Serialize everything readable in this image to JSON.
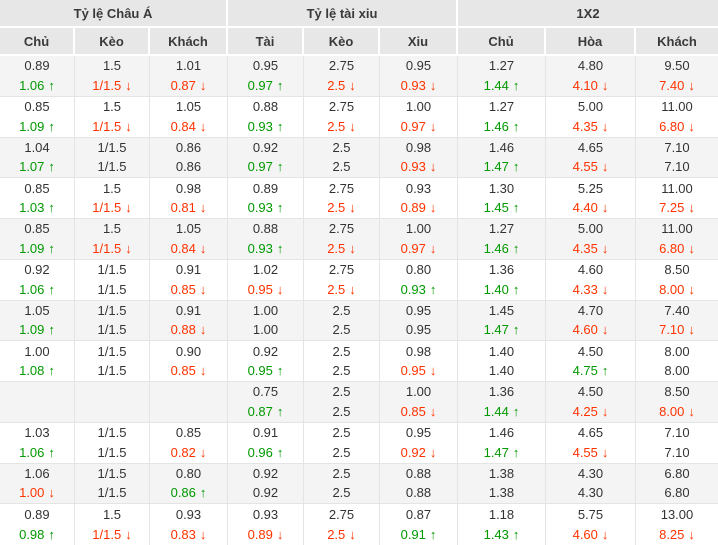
{
  "table": {
    "groups": [
      {
        "label": "Tỷ lệ Châu Á",
        "columns": [
          "Chủ",
          "Kèo",
          "Khách"
        ]
      },
      {
        "label": "Tỷ lệ tài xiu",
        "columns": [
          "Tài",
          "Kèo",
          "Xiu"
        ]
      },
      {
        "label": "1X2",
        "columns": [
          "Chủ",
          "Hòa",
          "Khách"
        ]
      }
    ],
    "column_keys": [
      "asian-home",
      "asian-handicap",
      "asian-away",
      "ou-over",
      "ou-line",
      "ou-under",
      "1x2-home",
      "1x2-draw",
      "1x2-away"
    ],
    "rows": [
      {
        "cells": [
          {
            "top": "0.89",
            "bottom": "1.06",
            "trend": "up"
          },
          {
            "top": "1.5",
            "bottom": "1/1.5",
            "trend": "down"
          },
          {
            "top": "1.01",
            "bottom": "0.87",
            "trend": "down"
          },
          {
            "top": "0.95",
            "bottom": "0.97",
            "trend": "up"
          },
          {
            "top": "2.75",
            "bottom": "2.5",
            "trend": "down"
          },
          {
            "top": "0.95",
            "bottom": "0.93",
            "trend": "down"
          },
          {
            "top": "1.27",
            "bottom": "1.44",
            "trend": "up"
          },
          {
            "top": "4.80",
            "bottom": "4.10",
            "trend": "down"
          },
          {
            "top": "9.50",
            "bottom": "7.40",
            "trend": "down"
          }
        ]
      },
      {
        "cells": [
          {
            "top": "0.85",
            "bottom": "1.09",
            "trend": "up"
          },
          {
            "top": "1.5",
            "bottom": "1/1.5",
            "trend": "down"
          },
          {
            "top": "1.05",
            "bottom": "0.84",
            "trend": "down"
          },
          {
            "top": "0.88",
            "bottom": "0.93",
            "trend": "up"
          },
          {
            "top": "2.75",
            "bottom": "2.5",
            "trend": "down"
          },
          {
            "top": "1.00",
            "bottom": "0.97",
            "trend": "down"
          },
          {
            "top": "1.27",
            "bottom": "1.46",
            "trend": "up"
          },
          {
            "top": "5.00",
            "bottom": "4.35",
            "trend": "down"
          },
          {
            "top": "11.00",
            "bottom": "6.80",
            "trend": "down"
          }
        ]
      },
      {
        "cells": [
          {
            "top": "1.04",
            "bottom": "1.07",
            "trend": "up"
          },
          {
            "top": "1/1.5",
            "bottom": "1/1.5",
            "trend": "none"
          },
          {
            "top": "0.86",
            "bottom": "0.86",
            "trend": "none"
          },
          {
            "top": "0.92",
            "bottom": "0.97",
            "trend": "up"
          },
          {
            "top": "2.5",
            "bottom": "2.5",
            "trend": "none"
          },
          {
            "top": "0.98",
            "bottom": "0.93",
            "trend": "down"
          },
          {
            "top": "1.46",
            "bottom": "1.47",
            "trend": "up"
          },
          {
            "top": "4.65",
            "bottom": "4.55",
            "trend": "down"
          },
          {
            "top": "7.10",
            "bottom": "7.10",
            "trend": "none"
          }
        ]
      },
      {
        "cells": [
          {
            "top": "0.85",
            "bottom": "1.03",
            "trend": "up"
          },
          {
            "top": "1.5",
            "bottom": "1/1.5",
            "trend": "down"
          },
          {
            "top": "0.98",
            "bottom": "0.81",
            "trend": "down"
          },
          {
            "top": "0.89",
            "bottom": "0.93",
            "trend": "up"
          },
          {
            "top": "2.75",
            "bottom": "2.5",
            "trend": "down"
          },
          {
            "top": "0.93",
            "bottom": "0.89",
            "trend": "down"
          },
          {
            "top": "1.30",
            "bottom": "1.45",
            "trend": "up"
          },
          {
            "top": "5.25",
            "bottom": "4.40",
            "trend": "down"
          },
          {
            "top": "11.00",
            "bottom": "7.25",
            "trend": "down"
          }
        ]
      },
      {
        "cells": [
          {
            "top": "0.85",
            "bottom": "1.09",
            "trend": "up"
          },
          {
            "top": "1.5",
            "bottom": "1/1.5",
            "trend": "down"
          },
          {
            "top": "1.05",
            "bottom": "0.84",
            "trend": "down"
          },
          {
            "top": "0.88",
            "bottom": "0.93",
            "trend": "up"
          },
          {
            "top": "2.75",
            "bottom": "2.5",
            "trend": "down"
          },
          {
            "top": "1.00",
            "bottom": "0.97",
            "trend": "down"
          },
          {
            "top": "1.27",
            "bottom": "1.46",
            "trend": "up"
          },
          {
            "top": "5.00",
            "bottom": "4.35",
            "trend": "down"
          },
          {
            "top": "11.00",
            "bottom": "6.80",
            "trend": "down"
          }
        ]
      },
      {
        "cells": [
          {
            "top": "0.92",
            "bottom": "1.06",
            "trend": "up"
          },
          {
            "top": "1/1.5",
            "bottom": "1/1.5",
            "trend": "none"
          },
          {
            "top": "0.91",
            "bottom": "0.85",
            "trend": "down"
          },
          {
            "top": "1.02",
            "bottom": "0.95",
            "trend": "down"
          },
          {
            "top": "2.75",
            "bottom": "2.5",
            "trend": "down"
          },
          {
            "top": "0.80",
            "bottom": "0.93",
            "trend": "up"
          },
          {
            "top": "1.36",
            "bottom": "1.40",
            "trend": "up"
          },
          {
            "top": "4.60",
            "bottom": "4.33",
            "trend": "down"
          },
          {
            "top": "8.50",
            "bottom": "8.00",
            "trend": "down"
          }
        ]
      },
      {
        "cells": [
          {
            "top": "1.05",
            "bottom": "1.09",
            "trend": "up"
          },
          {
            "top": "1/1.5",
            "bottom": "1/1.5",
            "trend": "none"
          },
          {
            "top": "0.91",
            "bottom": "0.88",
            "trend": "down"
          },
          {
            "top": "1.00",
            "bottom": "1.00",
            "trend": "none"
          },
          {
            "top": "2.5",
            "bottom": "2.5",
            "trend": "none"
          },
          {
            "top": "0.95",
            "bottom": "0.95",
            "trend": "none"
          },
          {
            "top": "1.45",
            "bottom": "1.47",
            "trend": "up"
          },
          {
            "top": "4.70",
            "bottom": "4.60",
            "trend": "down"
          },
          {
            "top": "7.40",
            "bottom": "7.10",
            "trend": "down"
          }
        ]
      },
      {
        "cells": [
          {
            "top": "1.00",
            "bottom": "1.08",
            "trend": "up"
          },
          {
            "top": "1/1.5",
            "bottom": "1/1.5",
            "trend": "none"
          },
          {
            "top": "0.90",
            "bottom": "0.85",
            "trend": "down"
          },
          {
            "top": "0.92",
            "bottom": "0.95",
            "trend": "up"
          },
          {
            "top": "2.5",
            "bottom": "2.5",
            "trend": "none"
          },
          {
            "top": "0.98",
            "bottom": "0.95",
            "trend": "down"
          },
          {
            "top": "1.40",
            "bottom": "1.40",
            "trend": "none"
          },
          {
            "top": "4.50",
            "bottom": "4.75",
            "trend": "up"
          },
          {
            "top": "8.00",
            "bottom": "8.00",
            "trend": "none"
          }
        ]
      },
      {
        "cells": [
          {
            "top": "",
            "bottom": "",
            "trend": "none"
          },
          {
            "top": "",
            "bottom": "",
            "trend": "none"
          },
          {
            "top": "",
            "bottom": "",
            "trend": "none"
          },
          {
            "top": "0.75",
            "bottom": "0.87",
            "trend": "up"
          },
          {
            "top": "2.5",
            "bottom": "2.5",
            "trend": "none"
          },
          {
            "top": "1.00",
            "bottom": "0.85",
            "trend": "down"
          },
          {
            "top": "1.36",
            "bottom": "1.44",
            "trend": "up"
          },
          {
            "top": "4.50",
            "bottom": "4.25",
            "trend": "down"
          },
          {
            "top": "8.50",
            "bottom": "8.00",
            "trend": "down"
          }
        ]
      },
      {
        "cells": [
          {
            "top": "1.03",
            "bottom": "1.06",
            "trend": "up"
          },
          {
            "top": "1/1.5",
            "bottom": "1/1.5",
            "trend": "none"
          },
          {
            "top": "0.85",
            "bottom": "0.82",
            "trend": "down"
          },
          {
            "top": "0.91",
            "bottom": "0.96",
            "trend": "up"
          },
          {
            "top": "2.5",
            "bottom": "2.5",
            "trend": "none"
          },
          {
            "top": "0.95",
            "bottom": "0.92",
            "trend": "down"
          },
          {
            "top": "1.46",
            "bottom": "1.47",
            "trend": "up"
          },
          {
            "top": "4.65",
            "bottom": "4.55",
            "trend": "down"
          },
          {
            "top": "7.10",
            "bottom": "7.10",
            "trend": "none"
          }
        ]
      },
      {
        "cells": [
          {
            "top": "1.06",
            "bottom": "1.00",
            "trend": "down"
          },
          {
            "top": "1/1.5",
            "bottom": "1/1.5",
            "trend": "none"
          },
          {
            "top": "0.80",
            "bottom": "0.86",
            "trend": "up"
          },
          {
            "top": "0.92",
            "bottom": "0.92",
            "trend": "none"
          },
          {
            "top": "2.5",
            "bottom": "2.5",
            "trend": "none"
          },
          {
            "top": "0.88",
            "bottom": "0.88",
            "trend": "none"
          },
          {
            "top": "1.38",
            "bottom": "1.38",
            "trend": "none"
          },
          {
            "top": "4.30",
            "bottom": "4.30",
            "trend": "none"
          },
          {
            "top": "6.80",
            "bottom": "6.80",
            "trend": "none"
          }
        ]
      },
      {
        "cells": [
          {
            "top": "0.89",
            "bottom": "0.98",
            "trend": "up"
          },
          {
            "top": "1.5",
            "bottom": "1/1.5",
            "trend": "down"
          },
          {
            "top": "0.93",
            "bottom": "0.83",
            "trend": "down"
          },
          {
            "top": "0.93",
            "bottom": "0.89",
            "trend": "down"
          },
          {
            "top": "2.75",
            "bottom": "2.5",
            "trend": "down"
          },
          {
            "top": "0.87",
            "bottom": "0.91",
            "trend": "up"
          },
          {
            "top": "1.18",
            "bottom": "1.43",
            "trend": "up"
          },
          {
            "top": "5.75",
            "bottom": "4.60",
            "trend": "down"
          },
          {
            "top": "13.00",
            "bottom": "8.25",
            "trend": "down"
          }
        ]
      }
    ]
  },
  "icons": {
    "up_arrow": "↑",
    "down_arrow": "↓"
  },
  "colors": {
    "up": "#009900",
    "down": "#ff3300",
    "text": "#333333",
    "header_bg": "#e7e7e7",
    "row_alt_bg": "#f4f4f4",
    "border": "#e4e4e4"
  }
}
